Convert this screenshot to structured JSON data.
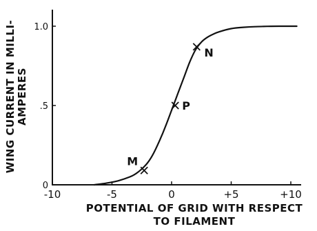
{
  "chart_data": {
    "type": "line",
    "xlabel_line1": "POTENTIAL OF GRID WITH RESPECT",
    "xlabel_line2": "TO FILAMENT",
    "ylabel_line1": "WING CURRENT IN MILLI-",
    "ylabel_line2": "AMPERES",
    "xlim": [
      -10,
      10.5
    ],
    "ylim": [
      0,
      1.1
    ],
    "x_ticks": [
      {
        "value": -10,
        "label": "-10"
      },
      {
        "value": -5,
        "label": "-5"
      },
      {
        "value": 0,
        "label": "0"
      },
      {
        "value": 5,
        "label": "+5"
      },
      {
        "value": 10,
        "label": "+10"
      }
    ],
    "y_ticks": [
      {
        "value": 0,
        "label": "0"
      },
      {
        "value": 0.5,
        "label": ".5"
      },
      {
        "value": 1.0,
        "label": "1.0"
      }
    ],
    "series": [
      {
        "x": [
          -6.5,
          -5.5,
          -4.5,
          -3.5,
          -3.0,
          -2.5,
          -2.0,
          -1.5,
          -1.0,
          -0.5,
          0.0,
          0.5,
          1.0,
          1.5,
          2.0,
          2.5,
          3.0,
          3.5,
          4.0,
          5.0,
          6.0,
          7.0,
          8.0,
          9.0,
          10.0,
          10.5
        ],
        "y": [
          0.0,
          0.01,
          0.025,
          0.05,
          0.07,
          0.1,
          0.14,
          0.2,
          0.28,
          0.37,
          0.47,
          0.57,
          0.67,
          0.77,
          0.85,
          0.9,
          0.93,
          0.95,
          0.965,
          0.985,
          0.993,
          0.997,
          0.999,
          1.0,
          1.0,
          1.0
        ]
      }
    ],
    "marked_points": [
      {
        "label": "M",
        "x": -2.3,
        "y": 0.09,
        "label_side": "upper-left"
      },
      {
        "label": "P",
        "x": 0.3,
        "y": 0.5,
        "label_side": "right"
      },
      {
        "label": "N",
        "x": 2.1,
        "y": 0.87,
        "label_side": "lower-right"
      }
    ]
  },
  "style": {
    "line_color": "#111111"
  }
}
